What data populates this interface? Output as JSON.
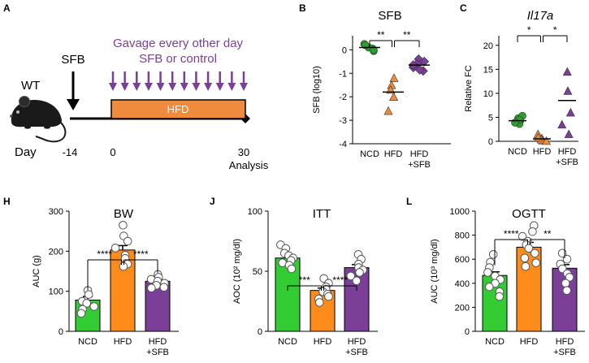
{
  "figure": {
    "panel_letters": [
      "A",
      "B",
      "C",
      "H",
      "J",
      "L"
    ]
  },
  "schematic": {
    "mouse_label": "WT",
    "day_label": "Day",
    "sfb_label": "SFB",
    "gavage_line1": "Gavage every other day",
    "gavage_line2": "SFB or control",
    "hfd_label": "HFD",
    "day_ticks": [
      "-14",
      "0",
      "30"
    ],
    "analysis_label": "Analysis",
    "gavage_arrow_count": 12,
    "colors": {
      "hfd_bar": "#f08a3c",
      "gavage": "#7b3f98"
    }
  },
  "chart_data": [
    {
      "id": "B",
      "type": "scatter",
      "title": "SFB",
      "title_italic": false,
      "ylabel": "SFB (log10)",
      "ylim": [
        -4,
        0.6
      ],
      "yticks": [
        0,
        -1,
        -2,
        -3,
        -4
      ],
      "ytick_labels": [
        "0",
        "-1",
        "-2",
        "-3",
        "-4"
      ],
      "categories": [
        "NCD",
        "HFD",
        "HFD\n+SFB"
      ],
      "markers": [
        "circle",
        "triangle",
        "diamond"
      ],
      "colors": [
        "#2ca02c",
        "#f08a3c",
        "#7b3f98"
      ],
      "filled": [
        true,
        true,
        true
      ],
      "values": [
        [
          0.05,
          0.25,
          0.1,
          -0.05,
          0.2,
          0.0
        ],
        [
          -1.2,
          -1.5,
          -1.7,
          -2.0,
          -2.6
        ],
        [
          -0.4,
          -0.6,
          -0.5,
          -0.75,
          -0.9,
          -0.65,
          -0.85
        ]
      ],
      "means": [
        0.1,
        -1.8,
        -0.65
      ],
      "significance": [
        {
          "from": 0,
          "to": 1,
          "label": "**"
        },
        {
          "from": 1,
          "to": 2,
          "label": "**"
        }
      ]
    },
    {
      "id": "C",
      "type": "scatter",
      "title": "Il17a",
      "title_italic": true,
      "ylabel": "Relative FC",
      "ylim": [
        0,
        22
      ],
      "yticks": [
        0,
        5,
        10,
        15,
        20
      ],
      "ytick_labels": [
        "0",
        "5",
        "10",
        "15",
        "20"
      ],
      "categories": [
        "NCD",
        "HFD",
        "HFD\n+SFB"
      ],
      "markers": [
        "circle",
        "triangle",
        "triangle"
      ],
      "colors": [
        "#2ca02c",
        "#f08a3c",
        "#7b3f98"
      ],
      "filled": [
        true,
        true,
        true
      ],
      "values": [
        [
          4.2,
          4.8,
          3.6,
          5.3,
          4.5,
          3.9
        ],
        [
          0.6,
          0.2,
          1.5,
          0.4,
          0.1,
          0.8
        ],
        [
          14.5,
          10.5,
          6.0,
          3.5,
          1.5
        ]
      ],
      "means": [
        4.3,
        0.5,
        8.5
      ],
      "significance": [
        {
          "from": 0,
          "to": 1,
          "label": "*"
        },
        {
          "from": 1,
          "to": 2,
          "label": "*"
        }
      ]
    },
    {
      "id": "H",
      "type": "bar",
      "title": "BW",
      "title_italic": false,
      "ylabel": "AUC (g)",
      "ylim": [
        0,
        300
      ],
      "yticks": [
        0,
        100,
        200,
        300
      ],
      "ytick_labels": [
        "0",
        "100",
        "200",
        "300"
      ],
      "categories": [
        "NCD",
        "HFD",
        "HFD\n+SFB"
      ],
      "colors": [
        "#33cc33",
        "#ff8c1a",
        "#7b3f98"
      ],
      "means": [
        78,
        203,
        125
      ],
      "sems": [
        9,
        11,
        5
      ],
      "values": [
        [
          102,
          92,
          75,
          70,
          62,
          55,
          45
        ],
        [
          265,
          238,
          225,
          208,
          190,
          182,
          168,
          162
        ],
        [
          142,
          135,
          130,
          125,
          120,
          115,
          110,
          108
        ]
      ],
      "significance": [
        {
          "from": 0,
          "to": 1,
          "label": "****"
        },
        {
          "from": 1,
          "to": 2,
          "label": "****"
        }
      ]
    },
    {
      "id": "J",
      "type": "bar",
      "title": "ITT",
      "title_italic": false,
      "ylabel": "AOC (10² mg/dl)",
      "ylim": [
        0,
        100
      ],
      "yticks": [
        0,
        50,
        100
      ],
      "ytick_labels": [
        "0",
        "50",
        "100"
      ],
      "categories": [
        "NCD",
        "HFD",
        "HFD\n+SFB"
      ],
      "colors": [
        "#33cc33",
        "#ff8c1a",
        "#7b3f98"
      ],
      "means": [
        61,
        34,
        53
      ],
      "sems": [
        2.5,
        2.0,
        2.5
      ],
      "values": [
        [
          72,
          69,
          65,
          63,
          61,
          59,
          57,
          55,
          52
        ],
        [
          44,
          40,
          37,
          35,
          33,
          31,
          29,
          27,
          24
        ],
        [
          64,
          60,
          56,
          53,
          51,
          49,
          46,
          42
        ]
      ],
      "significance": [
        {
          "from": 0,
          "to": 1,
          "label": "***"
        },
        {
          "from": 1,
          "to": 2,
          "label": "****"
        }
      ]
    },
    {
      "id": "L",
      "type": "bar",
      "title": "OGTT",
      "title_italic": false,
      "ylabel": "AUC (10³ mg/dl)",
      "ylim": [
        0,
        1000
      ],
      "yticks": [
        0,
        200,
        400,
        600,
        800,
        1000
      ],
      "ytick_labels": [
        "0",
        "200",
        "400",
        "600",
        "800",
        "1000"
      ],
      "categories": [
        "NCD",
        "HFD",
        "HFD\n+SFB"
      ],
      "colors": [
        "#33cc33",
        "#ff8c1a",
        "#7b3f98"
      ],
      "means": [
        465,
        700,
        525
      ],
      "sems": [
        30,
        40,
        30
      ],
      "values": [
        [
          640,
          575,
          530,
          490,
          460,
          430,
          400,
          370,
          330,
          290
        ],
        [
          880,
          830,
          790,
          750,
          720,
          690,
          650,
          610,
          570,
          540
        ],
        [
          650,
          600,
          560,
          520,
          480,
          450,
          400,
          340
        ]
      ],
      "significance": [
        {
          "from": 0,
          "to": 1,
          "label": "****"
        },
        {
          "from": 1,
          "to": 2,
          "label": "**"
        }
      ]
    }
  ]
}
